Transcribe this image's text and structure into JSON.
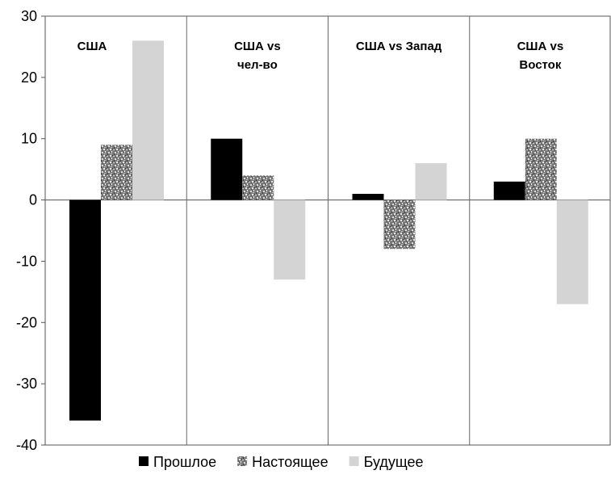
{
  "chart_data": {
    "type": "bar",
    "categories": [
      "США",
      "США vs\nчел-во",
      "США vs Запад",
      "США vs\nВосток"
    ],
    "series": [
      {
        "name": "Прошлое",
        "values": [
          -36,
          10,
          1,
          3
        ],
        "color": "#000000",
        "pattern": "solid"
      },
      {
        "name": "Настоящее",
        "values": [
          9,
          4,
          -8,
          10
        ],
        "color": "#9a9a9a",
        "pattern": "speckled"
      },
      {
        "name": "Будущее",
        "values": [
          26,
          -13,
          6,
          -17
        ],
        "color": "#d4d4d4",
        "pattern": "solid"
      }
    ],
    "ylim": [
      -40,
      30
    ],
    "yticks": [
      30,
      20,
      10,
      0,
      -10,
      -20,
      -30,
      -40
    ],
    "xlabel": "",
    "ylabel": "",
    "title": "",
    "grid": false,
    "legend_position": "bottom"
  }
}
